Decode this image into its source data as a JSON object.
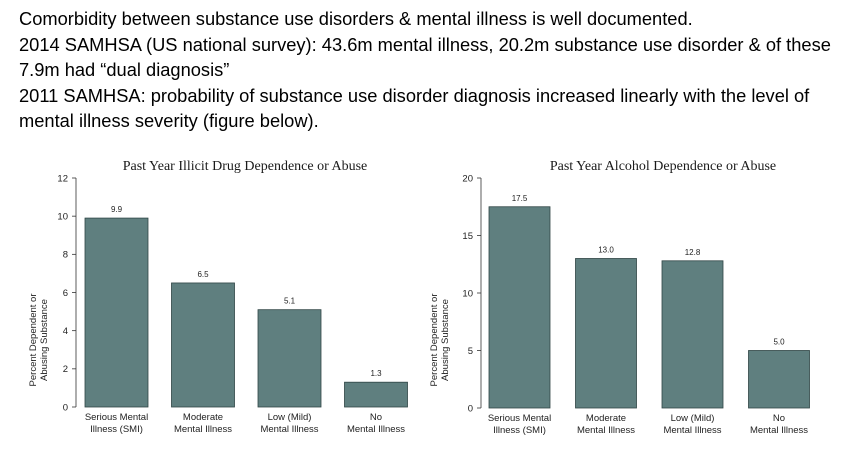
{
  "intro": {
    "line1": "Comorbidity between substance use disorders & mental illness is well documented.",
    "line2": "2014 SAMHSA (US national survey): 43.6m mental illness, 20.2m substance use disorder & of these 7.9m had “dual diagnosis”",
    "line3": "2011 SAMHSA: probability of substance use disorder diagnosis increased linearly with the level of mental illness severity (figure below)."
  },
  "colors": {
    "bar_fill": "#5f7f7f",
    "bar_stroke": "#2f4545"
  },
  "chart_data": [
    {
      "type": "bar",
      "title": "Past Year Illicit Drug Dependence or Abuse",
      "ylabel_line1": "Percent Dependent or",
      "ylabel_line2": "Abusing Substance",
      "ylim": [
        0,
        12
      ],
      "yticks": [
        0,
        2,
        4,
        6,
        8,
        10,
        12
      ],
      "categories": [
        [
          "Serious Mental",
          "Illness (SMI)"
        ],
        [
          "Moderate",
          "Mental Illness"
        ],
        [
          "Low (Mild)",
          "Mental Illness"
        ],
        [
          "No",
          "Mental Illness"
        ]
      ],
      "values": [
        9.9,
        6.5,
        5.1,
        1.3
      ],
      "value_labels": [
        "9.9",
        "6.5",
        "5.1",
        "1.3"
      ],
      "grid": false
    },
    {
      "type": "bar",
      "title": "Past Year Alcohol Dependence or Abuse",
      "ylabel_line1": "Percent Dependent or",
      "ylabel_line2": "Abusing Substance",
      "ylim": [
        0,
        20
      ],
      "yticks": [
        0,
        5,
        10,
        15,
        20
      ],
      "categories": [
        [
          "Serious Mental",
          "Illness (SMI)"
        ],
        [
          "Moderate",
          "Mental Illness"
        ],
        [
          "Low (Mild)",
          "Mental Illness"
        ],
        [
          "No",
          "Mental Illness"
        ]
      ],
      "values": [
        17.5,
        13.0,
        12.8,
        5.0
      ],
      "value_labels": [
        "17.5",
        "13.0",
        "12.8",
        "5.0"
      ],
      "grid": false
    }
  ]
}
